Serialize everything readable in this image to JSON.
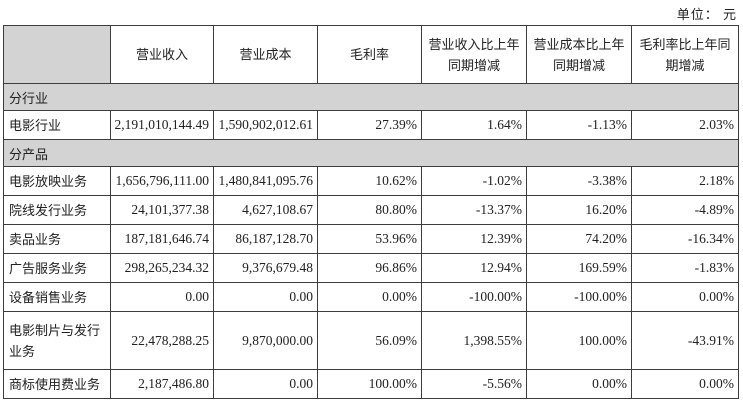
{
  "unit_label": "单位： 元",
  "colors": {
    "section_bg": "#d3d3d3",
    "border": "#3d3d3d",
    "text": "#212121"
  },
  "table": {
    "headers": [
      "",
      "营业收入",
      "营业成本",
      "毛利率",
      "营业收入比上年同期增减",
      "营业成本比上年同期增减",
      "毛利率比上年同期增减"
    ],
    "sections": [
      {
        "title": "分行业",
        "rows": [
          {
            "label": "电影行业",
            "values": [
              "2,191,010,144.49",
              "1,590,902,012.61",
              "27.39%",
              "1.64%",
              "-1.13%",
              "2.03%"
            ]
          }
        ]
      },
      {
        "title": "分产品",
        "rows": [
          {
            "label": "电影放映业务",
            "values": [
              "1,656,796,111.00",
              "1,480,841,095.76",
              "10.62%",
              "-1.02%",
              "-3.38%",
              "2.18%"
            ]
          },
          {
            "label": "院线发行业务",
            "values": [
              "24,101,377.38",
              "4,627,108.67",
              "80.80%",
              "-13.37%",
              "16.20%",
              "-4.89%"
            ]
          },
          {
            "label": "卖品业务",
            "values": [
              "187,181,646.74",
              "86,187,128.70",
              "53.96%",
              "12.39%",
              "74.20%",
              "-16.34%"
            ]
          },
          {
            "label": "广告服务业务",
            "values": [
              "298,265,234.32",
              "9,376,679.48",
              "96.86%",
              "12.94%",
              "169.59%",
              "-1.83%"
            ]
          },
          {
            "label": "设备销售业务",
            "values": [
              "0.00",
              "0.00",
              "0.00%",
              "-100.00%",
              "-100.00%",
              "0.00%"
            ]
          },
          {
            "label": "电影制片与发行业务",
            "values": [
              "22,478,288.25",
              "9,870,000.00",
              "56.09%",
              "1,398.55%",
              "100.00%",
              "-43.91%"
            ]
          },
          {
            "label": "商标使用费业务",
            "values": [
              "2,187,486.80",
              "0.00",
              "100.00%",
              "-5.56%",
              "0.00%",
              "0.00%"
            ]
          }
        ]
      }
    ]
  }
}
